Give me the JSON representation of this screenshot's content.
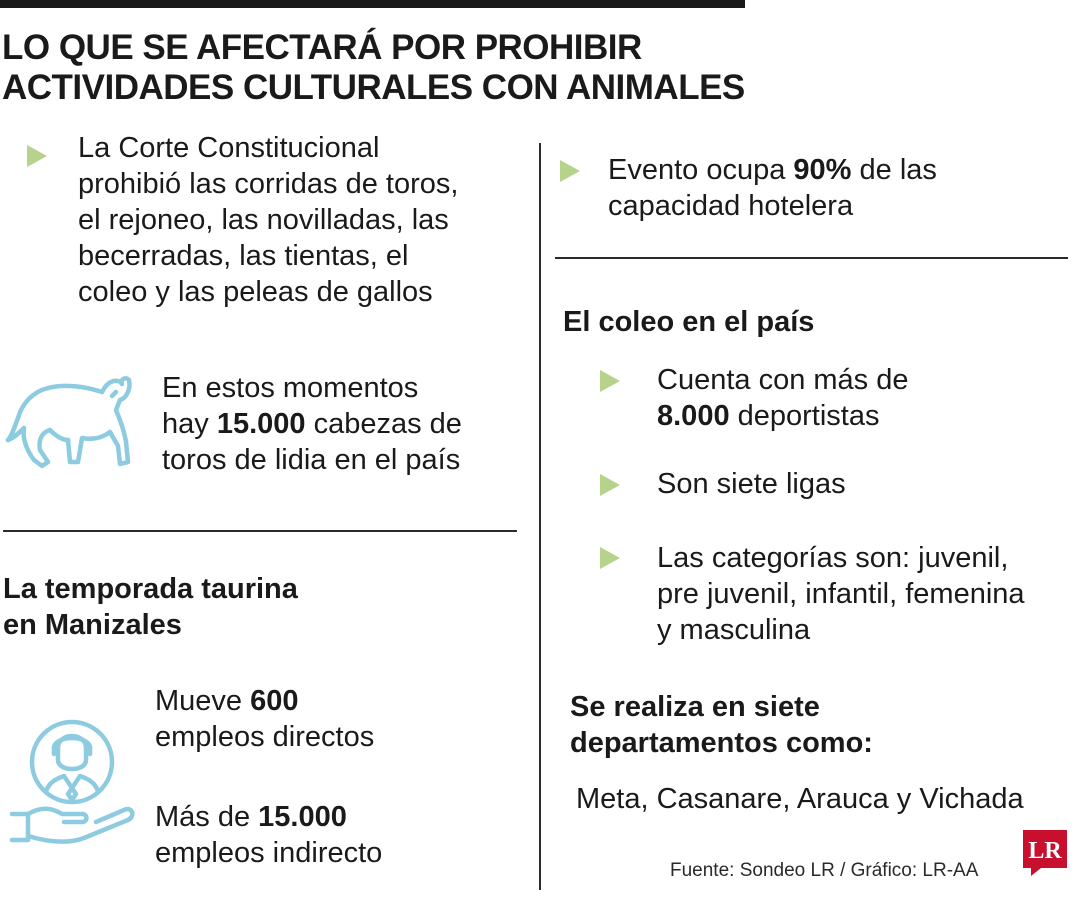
{
  "title": {
    "line1": "LO QUE SE AFECTARÁ POR PROHIBIR",
    "line2": "ACTIVIDADES CULTURALES CON ANIMALES"
  },
  "left": {
    "intro": {
      "lines": [
        "La Corte Constitucional",
        "prohibió las corridas de toros,",
        "el rejoneo, las novilladas, las",
        "becerradas, las tientas, el",
        "coleo y las peleas de gallos"
      ]
    },
    "bulls": {
      "line1_pre": "En estos momentos",
      "line2_pre": "hay ",
      "line2_bold": "15.000",
      "line2_post": " cabezas de",
      "line3": "toros de lidia en el país",
      "icon": "bull-icon"
    },
    "season": {
      "heading_line1": "La temporada taurina",
      "heading_line2": "en Manizales",
      "direct_pre": "Mueve ",
      "direct_bold": "600",
      "direct_line2": "empleos directos",
      "indirect_pre": "Más de ",
      "indirect_bold": "15.000",
      "indirect_line2": "empleos indirecto",
      "icon": "employee-hand-icon"
    }
  },
  "right": {
    "hotel": {
      "pre": "Evento ocupa ",
      "bold": "90%",
      "post": " de las",
      "line2": "capacidad hotelera"
    },
    "coleo": {
      "heading": "El coleo en el país",
      "athletes_line1": "Cuenta con más de",
      "athletes_bold": "8.000",
      "athletes_post": " deportistas",
      "leagues": "Son siete ligas",
      "categories_lines": [
        "Las categorías son: juvenil,",
        "pre juvenil, infantil, femenina",
        "y masculina"
      ]
    },
    "departments": {
      "heading_line1": "Se realiza en siete",
      "heading_line2": "departamentos como:",
      "list": "Meta, Casanare, Arauca y Vichada"
    }
  },
  "footer": {
    "source": "Fuente: Sondeo LR / Gráfico: LR-AA",
    "logo_text": "LR"
  },
  "colors": {
    "bullet": "#b7d28a",
    "icon": "#8ccbe0",
    "logo": "#c8102e",
    "text": "#1a1a1a"
  }
}
